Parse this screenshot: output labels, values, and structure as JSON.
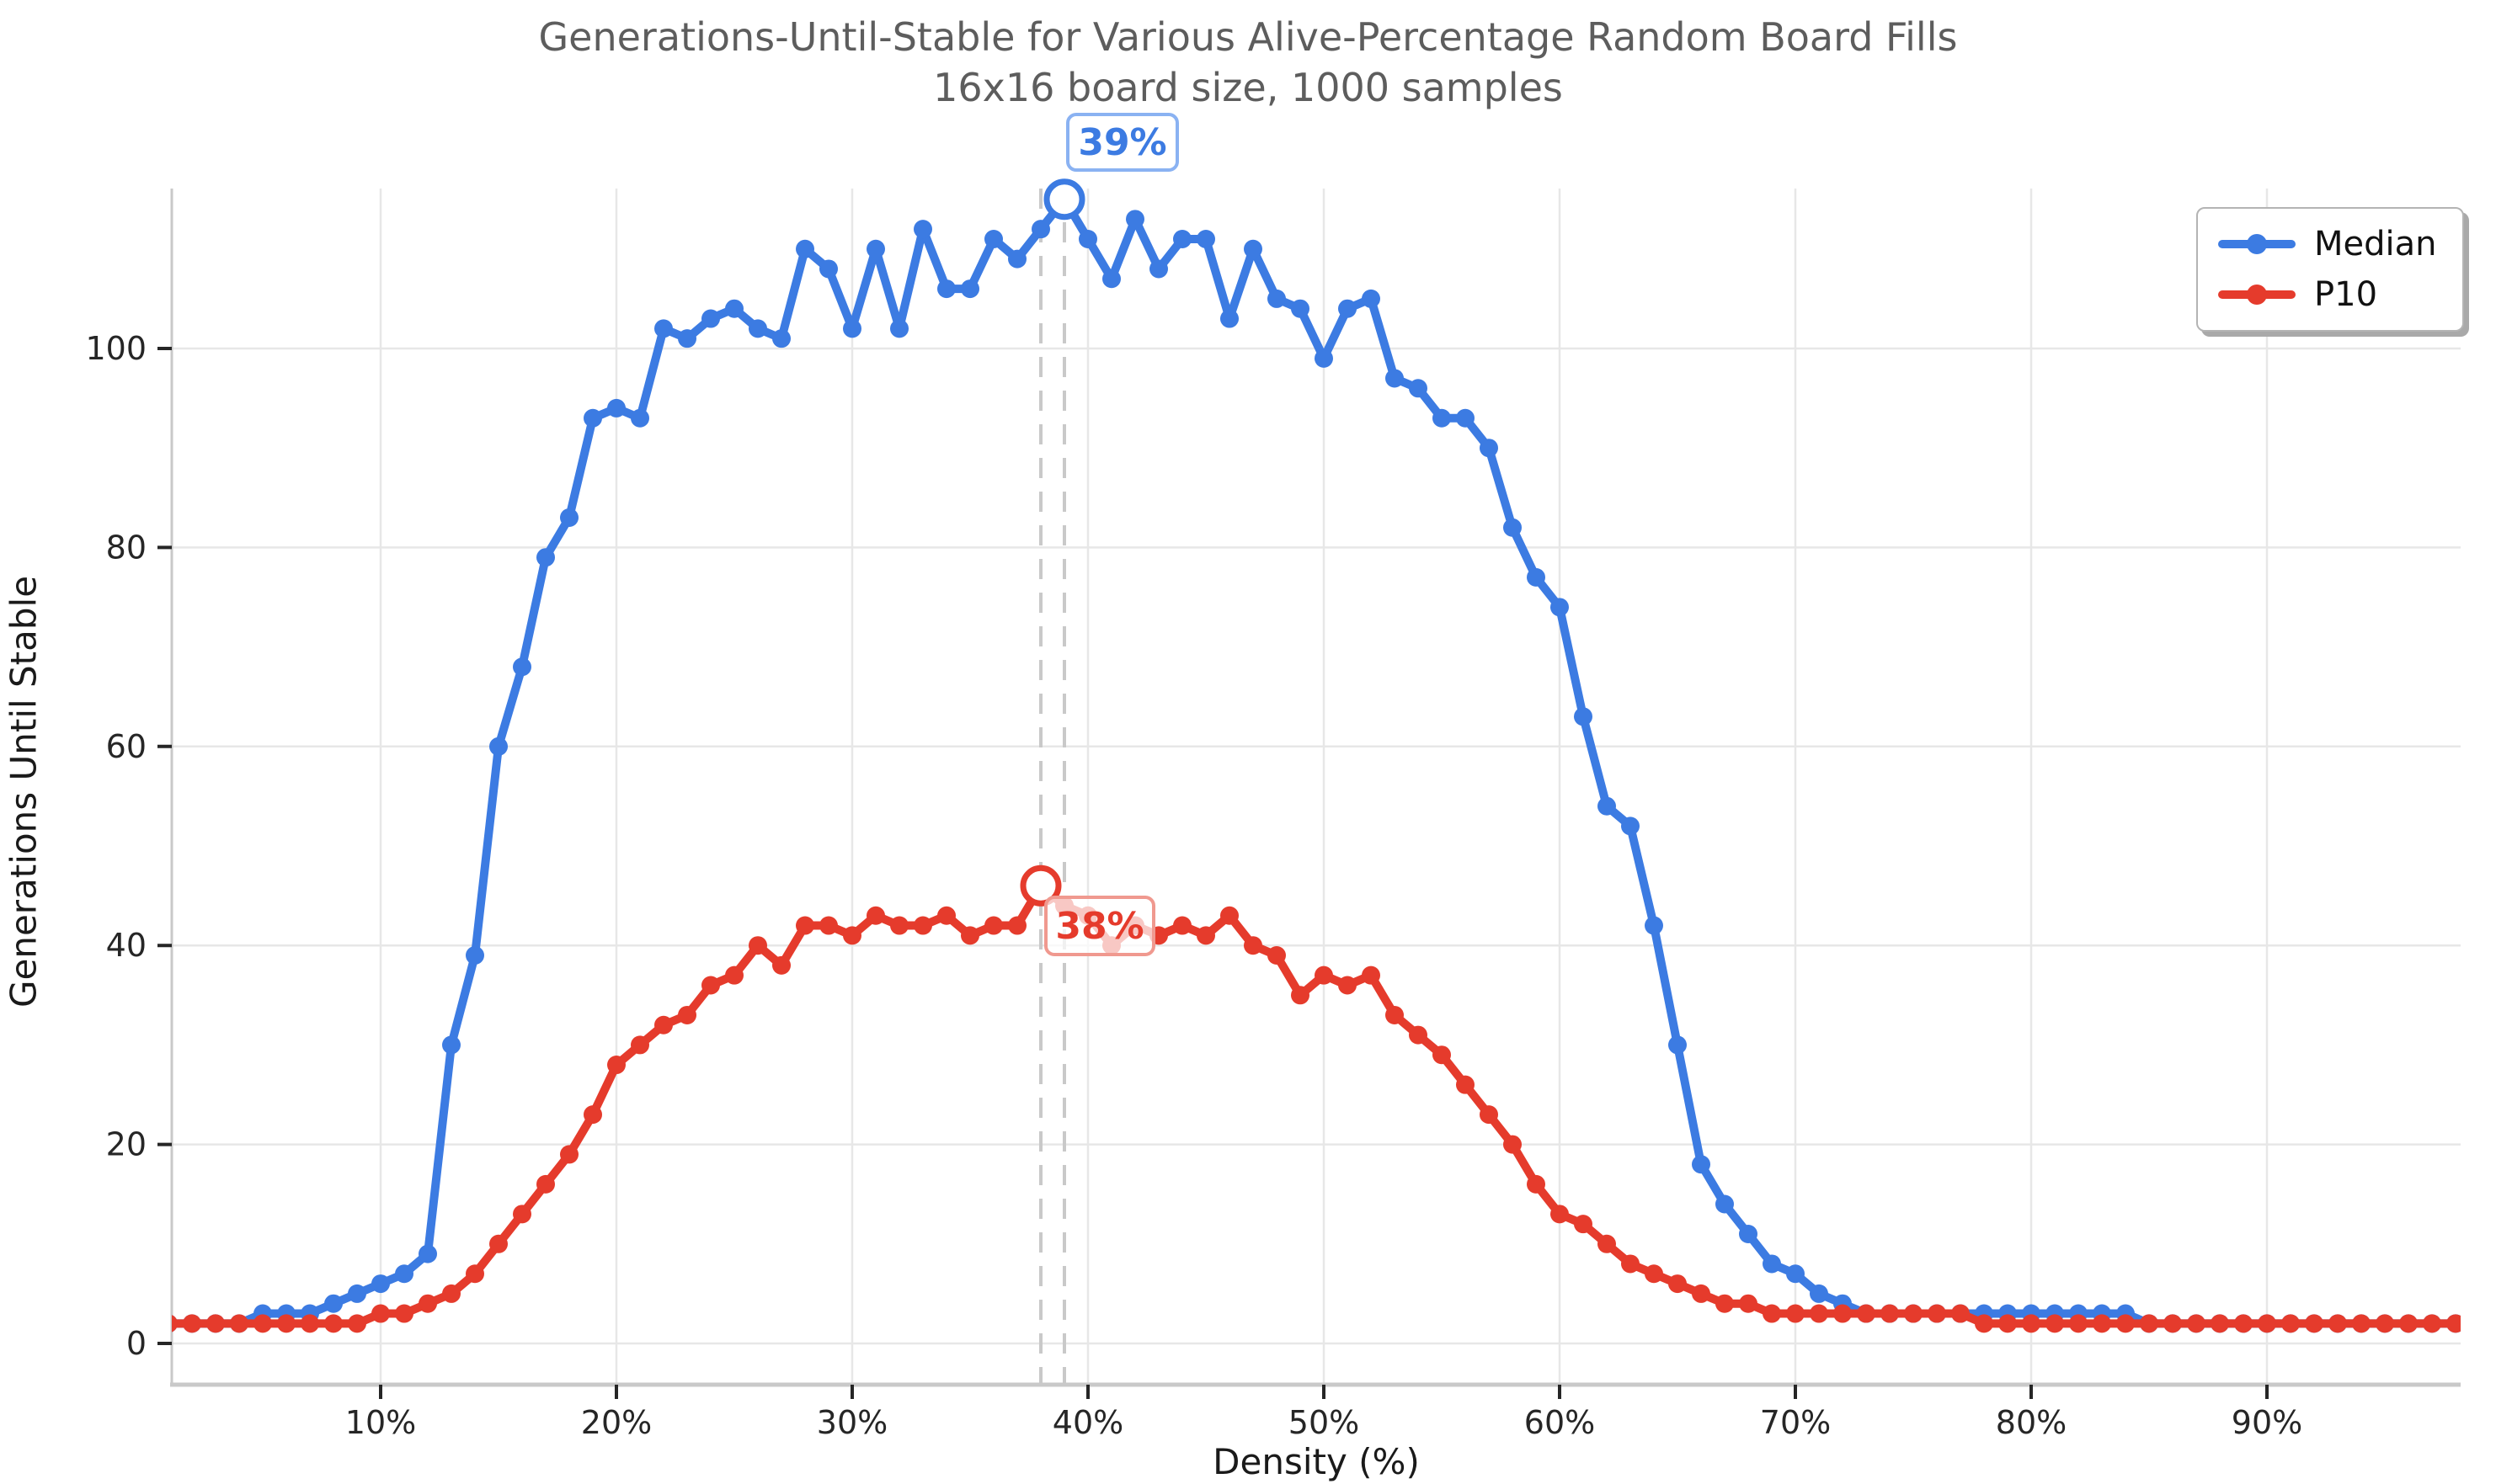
{
  "chart": {
    "title_line1": "Generations-Until-Stable for Various Alive-Percentage Random Board Fills",
    "title_line2": "16x16 board size, 1000 samples",
    "xlabel": "Density (%)",
    "ylabel": "Generations Until Stable",
    "legend": {
      "position": "upper right",
      "items": [
        {
          "label": "Median",
          "color": "#3c7be2"
        },
        {
          "label": "P10",
          "color": "#e53b2c"
        }
      ]
    },
    "annotations": {
      "median_peak": {
        "label": "39%",
        "density_percent": 39,
        "value": 115,
        "color": "#3c7be2"
      },
      "p10_peak": {
        "label": "38%",
        "density_percent": 38,
        "value": 46,
        "color": "#e53b2c"
      }
    },
    "colors": {
      "median_line": "#3c7be2",
      "p10_line": "#e53b2c",
      "grid": "#e7e7e7",
      "spine": "#c9c9c9",
      "dashed_guide": "#c9c9c9",
      "tick_text": "#262626",
      "title_text": "#5d5d5d"
    }
  },
  "chart_data": {
    "type": "line",
    "title": "Generations-Until-Stable for Various Alive-Percentage Random Board Fills",
    "subtitle": "16x16 board size, 1000 samples",
    "xlabel": "Density (%)",
    "ylabel": "Generations Until Stable",
    "grid": true,
    "legend_position": "upper right",
    "xlim": [
      1,
      98.2
    ],
    "ylim": [
      -4.1,
      116
    ],
    "x_tick_values": [
      10,
      20,
      30,
      40,
      50,
      60,
      70,
      80,
      90
    ],
    "x_tick_labels": [
      "10%",
      "20%",
      "30%",
      "40%",
      "50%",
      "60%",
      "70%",
      "80%",
      "90%"
    ],
    "y_tick_values": [
      0,
      20,
      40,
      60,
      80,
      100
    ],
    "y_tick_labels": [
      "0",
      "20",
      "40",
      "60",
      "80",
      "100"
    ],
    "x": [
      1,
      2,
      3,
      4,
      5,
      6,
      7,
      8,
      9,
      10,
      11,
      12,
      13,
      14,
      15,
      16,
      17,
      18,
      19,
      20,
      21,
      22,
      23,
      24,
      25,
      26,
      27,
      28,
      29,
      30,
      31,
      32,
      33,
      34,
      35,
      36,
      37,
      38,
      39,
      40,
      41,
      42,
      43,
      44,
      45,
      46,
      47,
      48,
      49,
      50,
      51,
      52,
      53,
      54,
      55,
      56,
      57,
      58,
      59,
      60,
      61,
      62,
      63,
      64,
      65,
      66,
      67,
      68,
      69,
      70,
      71,
      72,
      73,
      74,
      75,
      76,
      77,
      78,
      79,
      80,
      81,
      82,
      83,
      84,
      85,
      86,
      87,
      88,
      89,
      90,
      91,
      92,
      93,
      94,
      95,
      96,
      97,
      98
    ],
    "series": [
      {
        "name": "Median",
        "marker": "circle",
        "values": [
          2,
          2,
          2,
          2,
          3,
          3,
          3,
          4,
          5,
          6,
          7,
          9,
          30,
          39,
          60,
          68,
          79,
          83,
          93,
          94,
          93,
          102,
          101,
          103,
          104,
          102,
          101,
          110,
          108,
          102,
          110,
          102,
          112,
          106,
          106,
          111,
          109,
          112,
          115,
          111,
          107,
          113,
          108,
          111,
          111,
          103,
          110,
          105,
          104,
          99,
          104,
          105,
          97,
          96,
          93,
          93,
          90,
          82,
          77,
          74,
          63,
          54,
          52,
          42,
          30,
          18,
          14,
          11,
          8,
          7,
          5,
          4,
          3,
          3,
          3,
          3,
          3,
          3,
          3,
          3,
          3,
          3,
          3,
          3,
          2,
          2,
          2,
          2,
          2,
          2,
          2,
          2,
          2,
          2,
          2,
          2,
          2,
          2
        ]
      },
      {
        "name": "P10",
        "marker": "circle",
        "values": [
          2,
          2,
          2,
          2,
          2,
          2,
          2,
          2,
          2,
          3,
          3,
          4,
          5,
          7,
          10,
          13,
          16,
          19,
          23,
          28,
          30,
          32,
          33,
          36,
          37,
          40,
          38,
          42,
          42,
          41,
          43,
          42,
          42,
          43,
          41,
          42,
          42,
          46,
          44,
          43,
          40,
          42,
          41,
          42,
          41,
          43,
          40,
          39,
          35,
          37,
          36,
          37,
          33,
          31,
          29,
          26,
          23,
          20,
          16,
          13,
          12,
          10,
          8,
          7,
          6,
          5,
          4,
          4,
          3,
          3,
          3,
          3,
          3,
          3,
          3,
          3,
          3,
          2,
          2,
          2,
          2,
          2,
          2,
          2,
          2,
          2,
          2,
          2,
          2,
          2,
          2,
          2,
          2,
          2,
          2,
          2,
          2,
          2
        ]
      }
    ]
  }
}
